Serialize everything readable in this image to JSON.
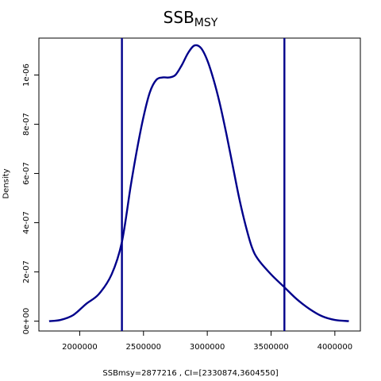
{
  "chart_data": {
    "type": "line",
    "title_main": "SSB",
    "title_sub": "MSY",
    "xlabel": "SSBmsy=2877216 , CI=[2330874,3604550]",
    "ylabel": "Density",
    "xlim": [
      1680000,
      4200000
    ],
    "ylim": [
      -4e-08,
      1.15e-06
    ],
    "x_ticks": [
      2000000,
      2500000,
      3000000,
      3500000,
      4000000
    ],
    "x_tick_labels": [
      "2000000",
      "2500000",
      "3000000",
      "3500000",
      "4000000"
    ],
    "y_ticks": [
      0,
      2e-07,
      4e-07,
      6e-07,
      8e-07,
      1e-06
    ],
    "y_tick_labels": [
      "0e+00",
      "2e-07",
      "4e-07",
      "6e-07",
      "8e-07",
      "1e-06"
    ],
    "series": [
      {
        "color": "#00008B",
        "x": [
          1760000,
          1850000,
          1950000,
          2050000,
          2150000,
          2250000,
          2330000,
          2400000,
          2450000,
          2500000,
          2550000,
          2600000,
          2650000,
          2700000,
          2750000,
          2800000,
          2850000,
          2900000,
          2950000,
          3000000,
          3050000,
          3100000,
          3150000,
          3200000,
          3250000,
          3300000,
          3350000,
          3400000,
          3500000,
          3600000,
          3700000,
          3800000,
          3900000,
          4000000,
          4110000
        ],
        "y": [
          0.0,
          5e-09,
          2.5e-08,
          7e-08,
          1.1e-07,
          1.9e-07,
          3.2e-07,
          5.5e-07,
          7e-07,
          8.3e-07,
          9.3e-07,
          9.8e-07,
          9.9e-07,
          9.9e-07,
          1e-06,
          1.04e-06,
          1.09e-06,
          1.12e-06,
          1.11e-06,
          1.06e-06,
          9.8e-07,
          8.8e-07,
          7.6e-07,
          6.3e-07,
          5e-07,
          3.9e-07,
          3e-07,
          2.5e-07,
          1.9e-07,
          1.4e-07,
          9e-08,
          5e-08,
          2e-08,
          5e-09,
          0.0
        ]
      }
    ],
    "vlines": [
      2330874,
      3604550
    ],
    "vline_color": "#00008B"
  }
}
